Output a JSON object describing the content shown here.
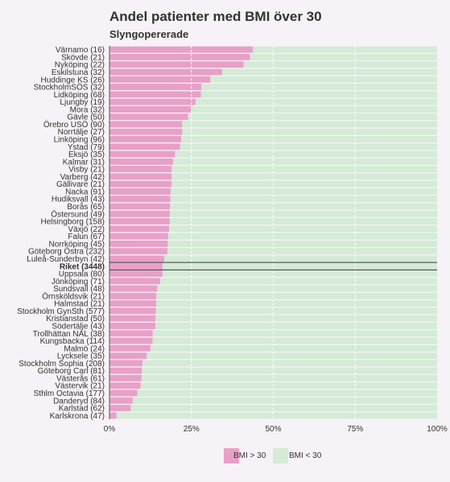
{
  "chart_data": {
    "type": "bar",
    "orientation": "horizontal",
    "stacked": true,
    "title": "Andel patienter med BMI över 30",
    "subtitle": "Slyngopererade",
    "categories": [
      "Värnamo (16)",
      "Skövde (21)",
      "Nyköping (22)",
      "Eskilstuna (32)",
      "Huddinge KS (26)",
      "StockholmSÖS (32)",
      "Lidköping (68)",
      "Ljungby (19)",
      "Mora (32)",
      "Gävle (50)",
      "Örebro USÖ (90)",
      "Norrtälje (27)",
      "Linköping (96)",
      "Ystad (79)",
      "Eksjö (35)",
      "Kalmar (31)",
      "Visby (21)",
      "Varberg (42)",
      "Gällivare (21)",
      "Nacka (91)",
      "Hudiksvall (43)",
      "Borås (65)",
      "Östersund (49)",
      "Helsingborg (158)",
      "Växjö (22)",
      "Falun (67)",
      "Norrköping (45)",
      "Göteborg Östra (232)",
      "Luleå-Sunderbyn (42)",
      "Riket (3448)",
      "Uppsala (80)",
      "Jönköping (71)",
      "Sundsvall (48)",
      "Örnsköldsvik (21)",
      "Halmstad (21)",
      "Stockholm GynSth (577)",
      "Kristianstad (50)",
      "Södertälje (43)",
      "Trollhättan NÄL (38)",
      "Kungsbacka (114)",
      "Malmö (24)",
      "Lycksele (35)",
      "Stockholm Sophia (208)",
      "Göteborg Carl (81)",
      "Västerås (61)",
      "Västervik (21)",
      "Sthlm Octavia (177)",
      "Danderyd (84)",
      "Karlstad (62)",
      "Karlskrona (47)"
    ],
    "highlight_category": "Riket (3448)",
    "series": [
      {
        "name": "BMI > 30",
        "color": "#e8a0c8",
        "values": [
          43.8,
          42.9,
          40.9,
          34.4,
          30.8,
          28.1,
          27.9,
          26.3,
          25.0,
          24.0,
          22.2,
          22.2,
          21.9,
          21.5,
          20.0,
          19.4,
          19.0,
          19.0,
          19.0,
          18.7,
          18.6,
          18.5,
          18.4,
          18.4,
          18.2,
          17.9,
          17.8,
          17.7,
          16.7,
          16.2,
          16.2,
          15.5,
          14.6,
          14.3,
          14.3,
          14.2,
          14.0,
          14.0,
          13.2,
          13.2,
          12.5,
          11.4,
          10.1,
          9.9,
          9.8,
          9.5,
          8.5,
          7.1,
          6.5,
          2.1
        ]
      },
      {
        "name": "BMI < 30",
        "color": "#d4ebd6",
        "values": [
          56.2,
          57.1,
          59.1,
          65.6,
          69.2,
          71.9,
          72.1,
          73.7,
          75.0,
          76.0,
          77.8,
          77.8,
          78.1,
          78.5,
          80.0,
          80.6,
          81.0,
          81.0,
          81.0,
          81.3,
          81.4,
          81.5,
          81.6,
          81.6,
          81.8,
          82.1,
          82.2,
          82.3,
          83.3,
          83.8,
          83.8,
          84.5,
          85.4,
          85.7,
          85.7,
          85.8,
          86.0,
          86.0,
          86.8,
          86.8,
          87.5,
          88.6,
          89.9,
          90.1,
          90.2,
          90.5,
          91.5,
          92.9,
          93.5,
          97.9
        ]
      }
    ],
    "x_ticks": [
      "0%",
      "25%",
      "50%",
      "75%",
      "100%"
    ],
    "xlim": [
      0,
      100
    ],
    "grid": true,
    "legend_position": "bottom"
  }
}
